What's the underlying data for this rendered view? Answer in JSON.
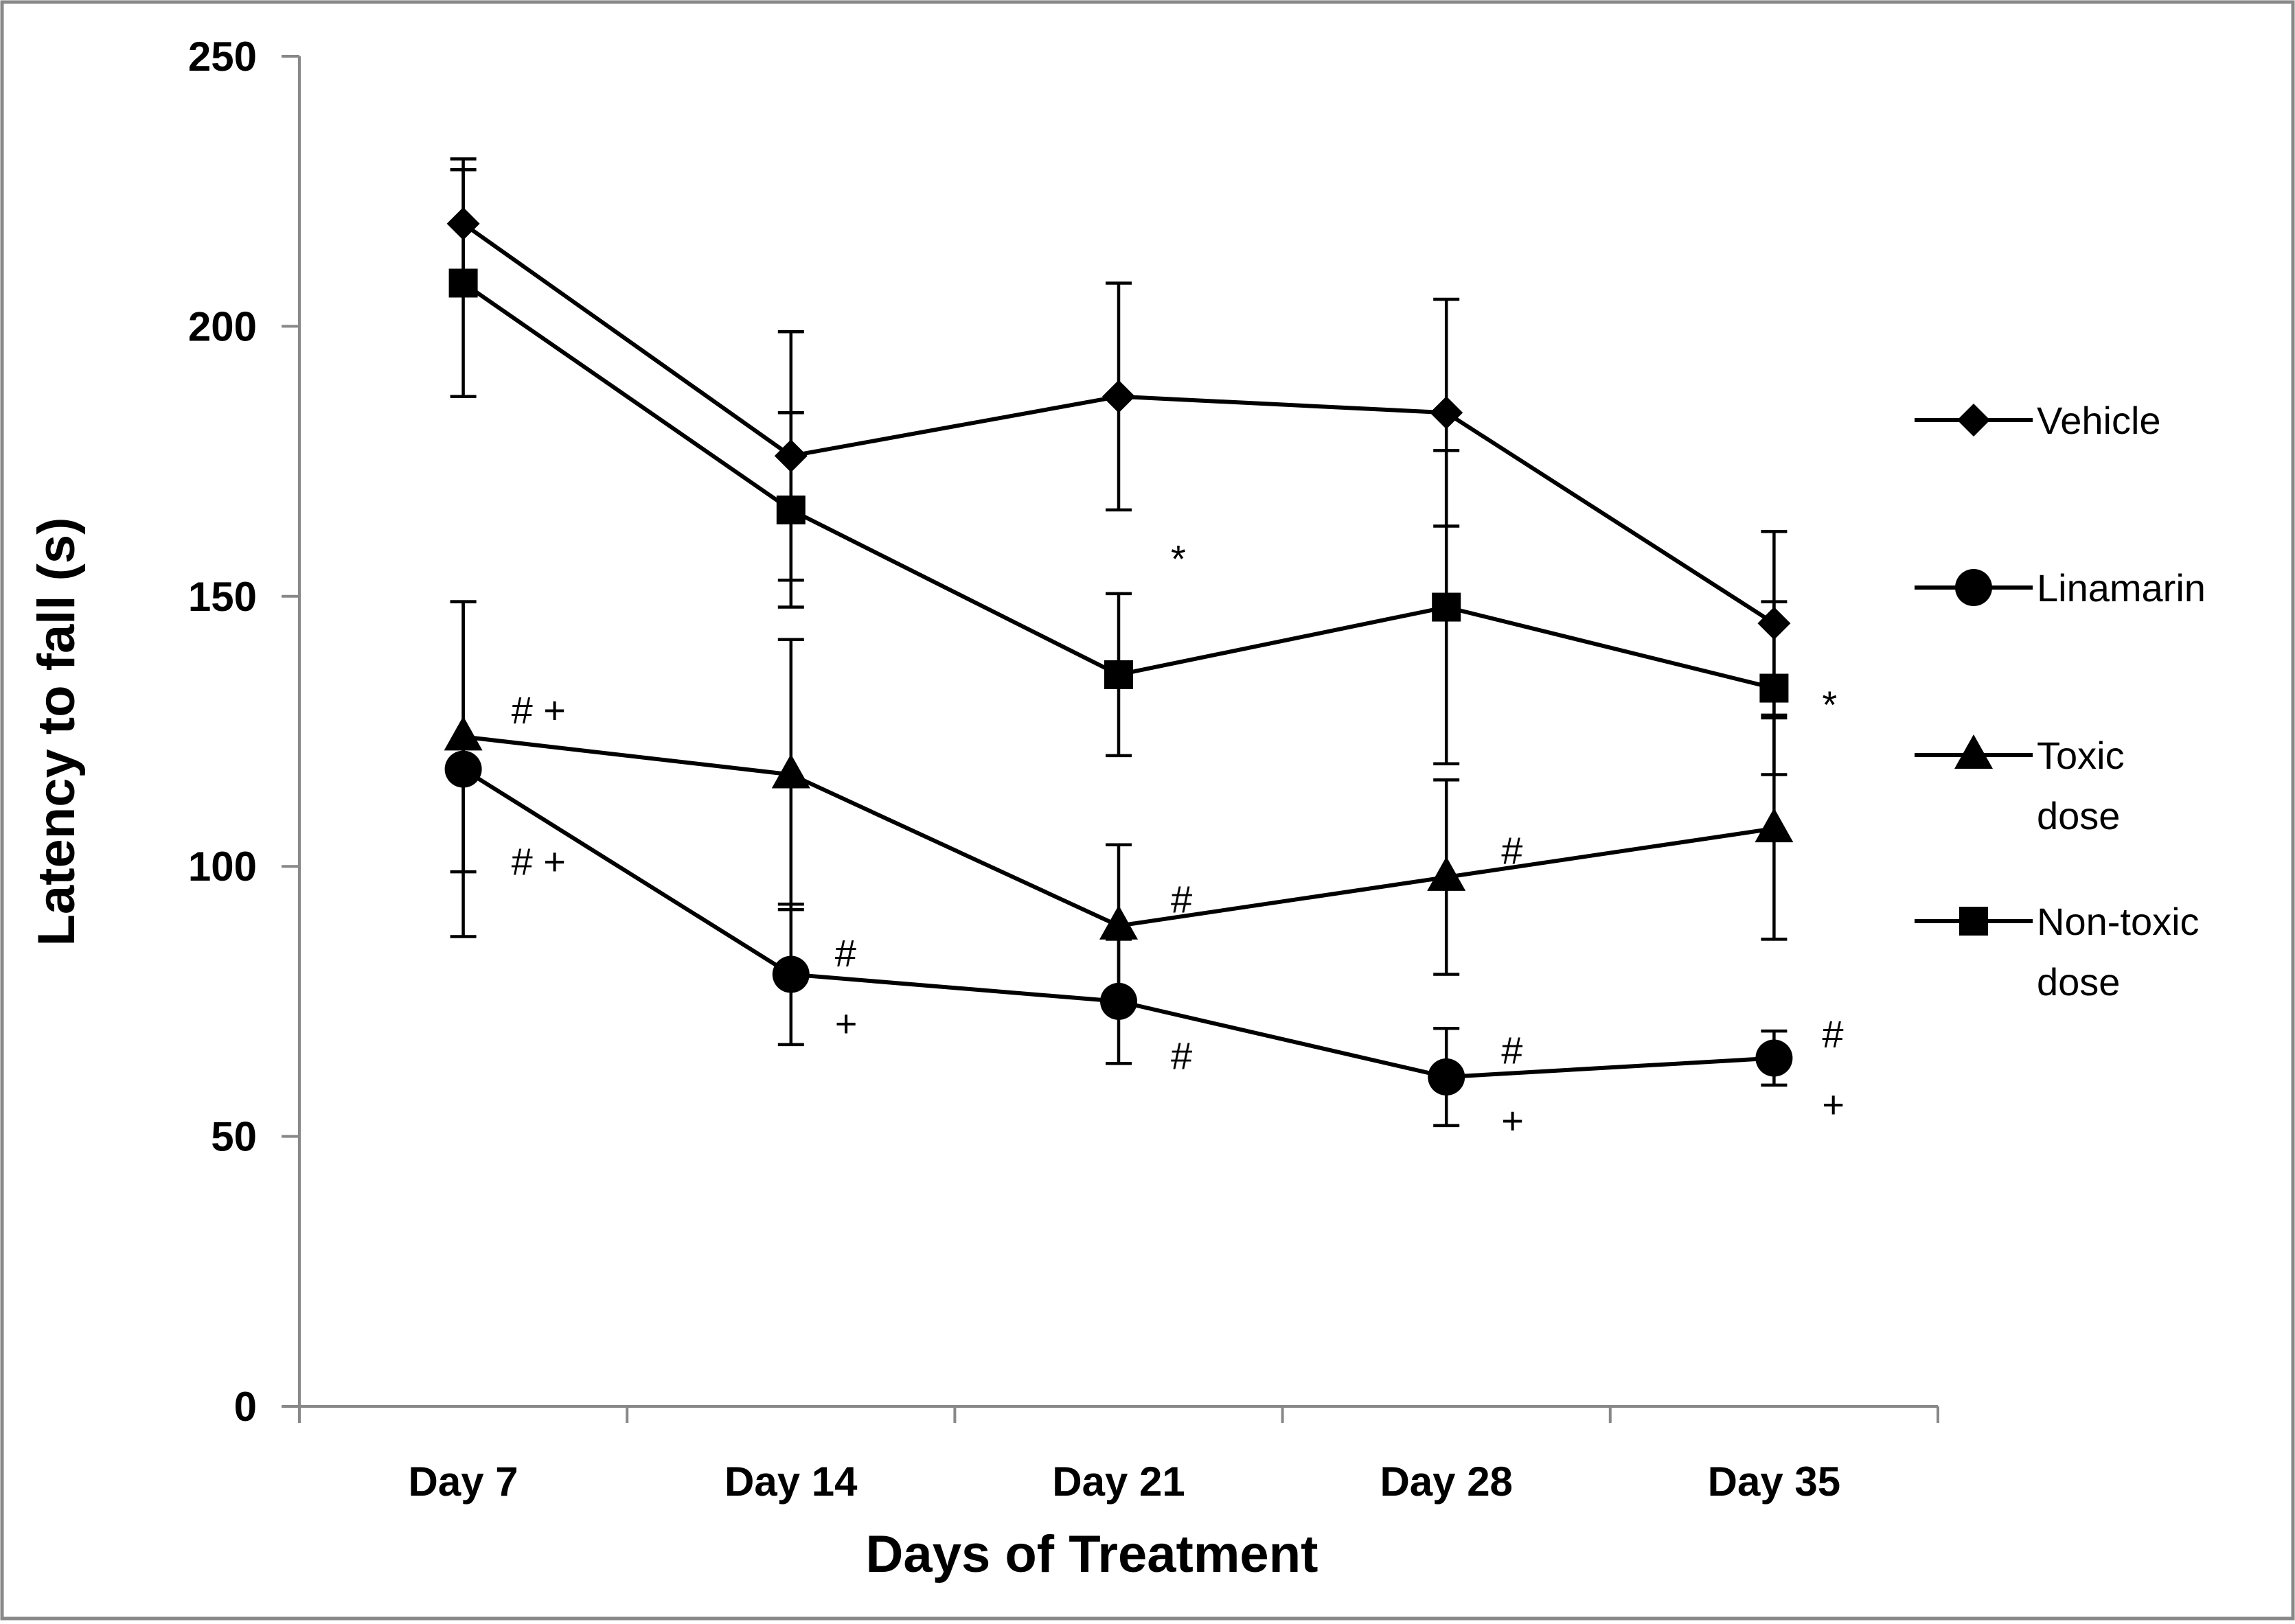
{
  "chart_data": {
    "type": "line",
    "title": "",
    "xlabel": "Days of Treatment",
    "ylabel": "Latency to fall (s)",
    "categories": [
      "Day 7",
      "Day 14",
      "Day 21",
      "Day 28",
      "Day 35"
    ],
    "ylim": [
      0,
      250
    ],
    "yticks": [
      0,
      50,
      100,
      150,
      200,
      250
    ],
    "grid": false,
    "legend_position": "right",
    "series": [
      {
        "name": "Vehicle",
        "legend_lines": [
          "Vehicle"
        ],
        "marker": "diamond",
        "values": [
          219,
          176,
          187,
          184,
          145
        ],
        "errors": [
          12,
          23,
          21,
          21,
          17
        ]
      },
      {
        "name": "Linamarin",
        "legend_lines": [
          "Linamarin"
        ],
        "marker": "circle",
        "values": [
          118,
          80,
          75,
          61,
          64.5
        ],
        "errors": [
          31,
          13,
          11.5,
          9,
          5
        ]
      },
      {
        "name": "Toxic dose",
        "legend_lines": [
          "Toxic",
          "dose"
        ],
        "marker": "triangle",
        "values": [
          124,
          117,
          89,
          98,
          107
        ],
        "errors": [
          25,
          25,
          15,
          18,
          20.5
        ]
      },
      {
        "name": "Non-toxic dose",
        "legend_lines": [
          "Non-toxic",
          "dose"
        ],
        "marker": "square",
        "values": [
          208,
          166,
          135.5,
          148,
          133
        ],
        "errors": [
          21,
          18,
          15,
          29,
          16
        ]
      }
    ],
    "annotations": [
      {
        "text": "# +",
        "x": 0,
        "y": 129
      },
      {
        "text": "# +",
        "x": 0,
        "y": 101
      },
      {
        "text": "#",
        "x": 1,
        "y": 84
      },
      {
        "text": "+",
        "x": 1,
        "y": 71
      },
      {
        "text": "*",
        "x": 2,
        "y": 157
      },
      {
        "text": "#",
        "x": 2,
        "y": 94
      },
      {
        "text": "#",
        "x": 2,
        "y": 65
      },
      {
        "text": "#",
        "x": 3,
        "y": 103
      },
      {
        "text": "#",
        "x": 3,
        "y": 66
      },
      {
        "text": "+",
        "x": 3,
        "y": 53
      },
      {
        "text": "*",
        "x": 4,
        "y": 130
      },
      {
        "text": "#",
        "x": 4,
        "y": 69
      },
      {
        "text": "+",
        "x": 4,
        "y": 56
      }
    ]
  }
}
